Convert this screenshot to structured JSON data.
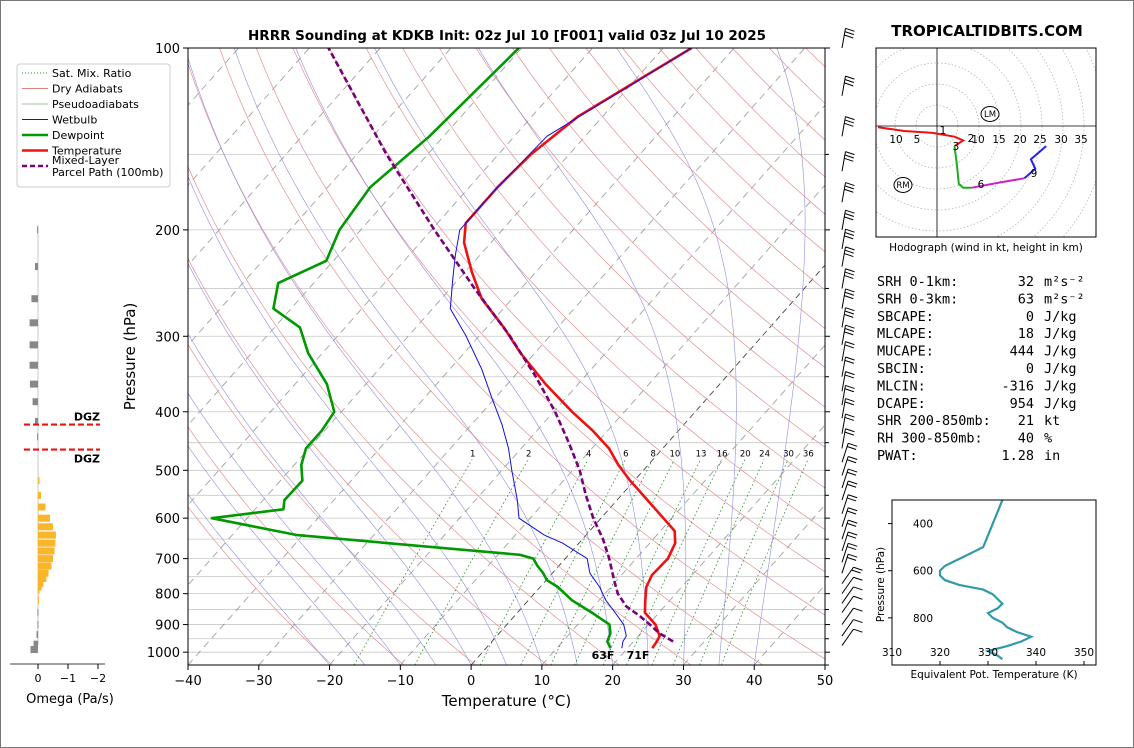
{
  "header": {
    "title": "HRRR Sounding at KDKB Init: 02z Jul 10 [F001] valid 03z Jul 10 2025",
    "brand": "TROPICALTIDBITS.COM"
  },
  "legend": {
    "items": [
      {
        "label": "Sat. Mix. Ratio",
        "style": "dotted",
        "color": "#2a8a2a"
      },
      {
        "label": "Dry Adiabats",
        "style": "solid",
        "color": "#e08080"
      },
      {
        "label": "Pseudoadiabats",
        "style": "solid",
        "color": "#a0c0a0"
      },
      {
        "label": "Wetbulb",
        "style": "solid",
        "color": "#1010e0"
      },
      {
        "label": "Dewpoint",
        "style": "solid",
        "color": "#009900"
      },
      {
        "label": "Temperature",
        "style": "solid",
        "color": "#ee1111"
      },
      {
        "label": "Mixed-Layer\nParcel Path (100mb)",
        "style": "dashed",
        "color": "#7a007a"
      }
    ]
  },
  "omega": {
    "xlabel": "Omega (Pa/s)",
    "ticks": [
      "0",
      "−1",
      "−2"
    ],
    "dgz_label": "DGZ",
    "dgz_pressures": [
      420,
      462
    ]
  },
  "surface": {
    "dewpoint_label": "63F",
    "temp_label": "71F"
  },
  "hodograph": {
    "caption": "Hodograph (wind in kt, height in km)",
    "ring_labels": [
      "10",
      "5",
      "10",
      "15",
      "20",
      "25",
      "30",
      "35"
    ],
    "markers": [
      "LM",
      "RM"
    ],
    "height_labels": [
      "1",
      "2",
      "3",
      "6",
      "9"
    ]
  },
  "params": [
    {
      "label": "SRH 0-1km:",
      "value": "32",
      "unit": "m²s⁻²",
      "color": "#000000"
    },
    {
      "label": "SRH 0-3km:",
      "value": "63",
      "unit": "m²s⁻²",
      "color": "#000000"
    },
    {
      "label": "SBCAPE:",
      "value": "0",
      "unit": "J/kg",
      "color": "#000000"
    },
    {
      "label": "MLCAPE:",
      "value": "18",
      "unit": "J/kg",
      "color": "#ee2222"
    },
    {
      "label": "MUCAPE:",
      "value": "444",
      "unit": "J/kg",
      "color": "#ee2222"
    },
    {
      "label": "SBCIN:",
      "value": "0",
      "unit": "J/kg",
      "color": "#000000"
    },
    {
      "label": "MLCIN:",
      "value": "-316",
      "unit": "J/kg",
      "color": "#2233dd"
    },
    {
      "label": "DCAPE:",
      "value": "954",
      "unit": "J/kg",
      "color": "#2233dd"
    },
    {
      "label": "SHR 200-850mb:",
      "value": "21",
      "unit": "kt",
      "color": "#cc5522"
    },
    {
      "label": "RH 300-850mb:",
      "value": "40",
      "unit": "%",
      "color": "#7a4a00"
    },
    {
      "label": "PWAT:",
      "value": "1.28",
      "unit": "in",
      "color": "#000000"
    }
  ],
  "chart_data": [
    {
      "type": "line",
      "subtype": "skew-t",
      "title": "HRRR Sounding at KDKB Init: 02z Jul 10 [F001] valid 03z Jul 10 2025",
      "xlabel": "Temperature (°C)",
      "ylabel": "Pressure (hPa)",
      "xlim": [
        -40,
        50
      ],
      "ylim": [
        1050,
        100
      ],
      "yscale": "log",
      "x_ticks": [
        -40,
        -30,
        -20,
        -10,
        0,
        10,
        20,
        30,
        40,
        50
      ],
      "y_ticks": [
        100,
        200,
        300,
        400,
        500,
        600,
        700,
        800,
        900,
        1000
      ],
      "mixing_ratio_labels": [
        "1",
        "2",
        "4",
        "6",
        "8",
        "10",
        "13",
        "16",
        "20",
        "24",
        "30",
        "36"
      ],
      "series": [
        {
          "name": "Temperature",
          "color": "#ee1111",
          "pressure": [
            985,
            960,
            940,
            900,
            860,
            820,
            780,
            745,
            700,
            660,
            630,
            600,
            560,
            520,
            490,
            460,
            430,
            400,
            360,
            320,
            290,
            260,
            235,
            210,
            195,
            170,
            150,
            130,
            100
          ],
          "values": [
            23.5,
            23.3,
            23.0,
            21.0,
            18.0,
            16.5,
            15.0,
            14.3,
            14.5,
            13.6,
            12.0,
            8.8,
            4.3,
            -0.6,
            -4.2,
            -7.6,
            -12.1,
            -17.4,
            -24.6,
            -32.0,
            -37.6,
            -44.3,
            -49.0,
            -53.8,
            -56.0,
            -56.0,
            -55.4,
            -53.5,
            -46.0
          ]
        },
        {
          "name": "Dewpoint",
          "color": "#009900",
          "pressure": [
            985,
            960,
            930,
            900,
            860,
            820,
            780,
            760,
            740,
            720,
            700,
            690,
            640,
            600,
            580,
            560,
            520,
            490,
            460,
            430,
            400,
            360,
            320,
            290,
            270,
            245,
            225,
            200,
            170,
            140,
            100
          ],
          "values": [
            17.6,
            16.3,
            15.7,
            14.5,
            10.5,
            6.1,
            2.5,
            0.1,
            -1.3,
            -3.0,
            -4.5,
            -6.9,
            -40.8,
            -55.0,
            -46.0,
            -47.0,
            -46.9,
            -49.0,
            -50.4,
            -50.4,
            -51.0,
            -55.5,
            -62.0,
            -66.4,
            -72.5,
            -75.0,
            -71.0,
            -73.0,
            -74.0,
            -72.0,
            -70.4
          ]
        },
        {
          "name": "Wetbulb",
          "color": "#1010e0",
          "pressure": [
            985,
            960,
            940,
            900,
            860,
            820,
            780,
            740,
            700,
            660,
            640,
            600,
            560,
            500,
            460,
            420,
            380,
            340,
            300,
            270,
            240,
            220,
            200,
            170,
            140,
            100
          ],
          "values": [
            19.2,
            18.5,
            18.3,
            16.5,
            13.8,
            10.9,
            8.4,
            5.3,
            3.1,
            -2.3,
            -5.9,
            -11.6,
            -14.1,
            -18.6,
            -21.8,
            -25.7,
            -30.4,
            -35.5,
            -41.8,
            -47.5,
            -51.0,
            -53.5,
            -56.0,
            -56.0,
            -55.4,
            -46.0
          ]
        },
        {
          "name": "Mixed-Layer Parcel Path (100mb)",
          "color": "#7a007a",
          "style": "dashed",
          "pressure": [
            960,
            930,
            900,
            870,
            840,
            800,
            760,
            700,
            650,
            600,
            550,
            500,
            450,
            400,
            350,
            300,
            250,
            200,
            150,
            100
          ],
          "values": [
            25.6,
            22.6,
            20.2,
            17.6,
            14.6,
            11.8,
            9.6,
            6.2,
            2.9,
            -1.1,
            -5.0,
            -9.0,
            -14.0,
            -19.8,
            -26.9,
            -35.6,
            -46.6,
            -59.6,
            -75.8,
            -97.3
          ]
        }
      ]
    },
    {
      "type": "line",
      "subtype": "hodograph",
      "title": "Hodograph (wind in kt, height in km)",
      "series": [
        {
          "name": "0-3 km",
          "color": "#ee1111",
          "u": [
            -27,
            -15,
            -2,
            8,
            12,
            8
          ],
          "v": [
            2,
            0,
            -1,
            -3,
            -5,
            -8
          ]
        },
        {
          "name": "3-6 km",
          "color": "#22aa22",
          "u": [
            8,
            9,
            10,
            12,
            16
          ],
          "v": [
            -8,
            -17,
            -28,
            -30,
            -30
          ]
        },
        {
          "name": "6-9 km",
          "color": "#cc22cc",
          "u": [
            16,
            30,
            40
          ],
          "v": [
            -30,
            -27,
            -25
          ]
        },
        {
          "name": "9+ km",
          "color": "#2222ee",
          "u": [
            40,
            45,
            43,
            50
          ],
          "v": [
            -25,
            -20,
            -15,
            -8
          ]
        }
      ],
      "markers": [
        {
          "label": "LM",
          "u": 22,
          "v": 5
        },
        {
          "label": "RM",
          "u": -15,
          "v": -28
        }
      ]
    },
    {
      "type": "line",
      "title": "",
      "xlabel": "Equivalent Pot. Temperature (K)",
      "ylabel": "Pressure (hPa)",
      "xlim": [
        310,
        350
      ],
      "ylim": [
        1000,
        300
      ],
      "x_ticks": [
        310,
        320,
        330,
        340,
        350
      ],
      "y_ticks": [
        400,
        600,
        800
      ],
      "series": [
        {
          "name": "theta-e",
          "color": "#3399aa",
          "pressure": [
            975,
            960,
            940,
            920,
            900,
            880,
            860,
            840,
            820,
            800,
            780,
            760,
            740,
            720,
            700,
            680,
            660,
            640,
            620,
            600,
            580,
            560,
            540,
            500,
            450,
            400,
            350,
            300
          ],
          "values": [
            333,
            332,
            330,
            334,
            337,
            339,
            336,
            334,
            333,
            331,
            330,
            332,
            333,
            332,
            331,
            329,
            324,
            321,
            320,
            320,
            321,
            323,
            325,
            329,
            330,
            331,
            332,
            333
          ]
        }
      ]
    },
    {
      "type": "bar",
      "subtype": "omega-profile",
      "xlabel": "Omega (Pa/s)",
      "pressure": [
        990,
        970,
        935,
        900,
        860,
        820,
        790,
        780,
        770,
        755,
        740,
        720,
        700,
        680,
        660,
        640,
        620,
        600,
        575,
        550,
        520,
        440,
        415,
        385,
        360,
        335,
        310,
        285,
        260,
        230,
        200
      ],
      "values": [
        0.25,
        0.15,
        0.05,
        0.02,
        0.02,
        -0.02,
        -0.05,
        -0.12,
        -0.18,
        -0.28,
        -0.35,
        -0.45,
        -0.5,
        -0.55,
        -0.58,
        -0.6,
        -0.5,
        -0.4,
        -0.25,
        -0.1,
        -0.05,
        0.03,
        0.1,
        0.18,
        0.27,
        0.28,
        0.28,
        0.28,
        0.22,
        0.1,
        0.03
      ]
    }
  ]
}
